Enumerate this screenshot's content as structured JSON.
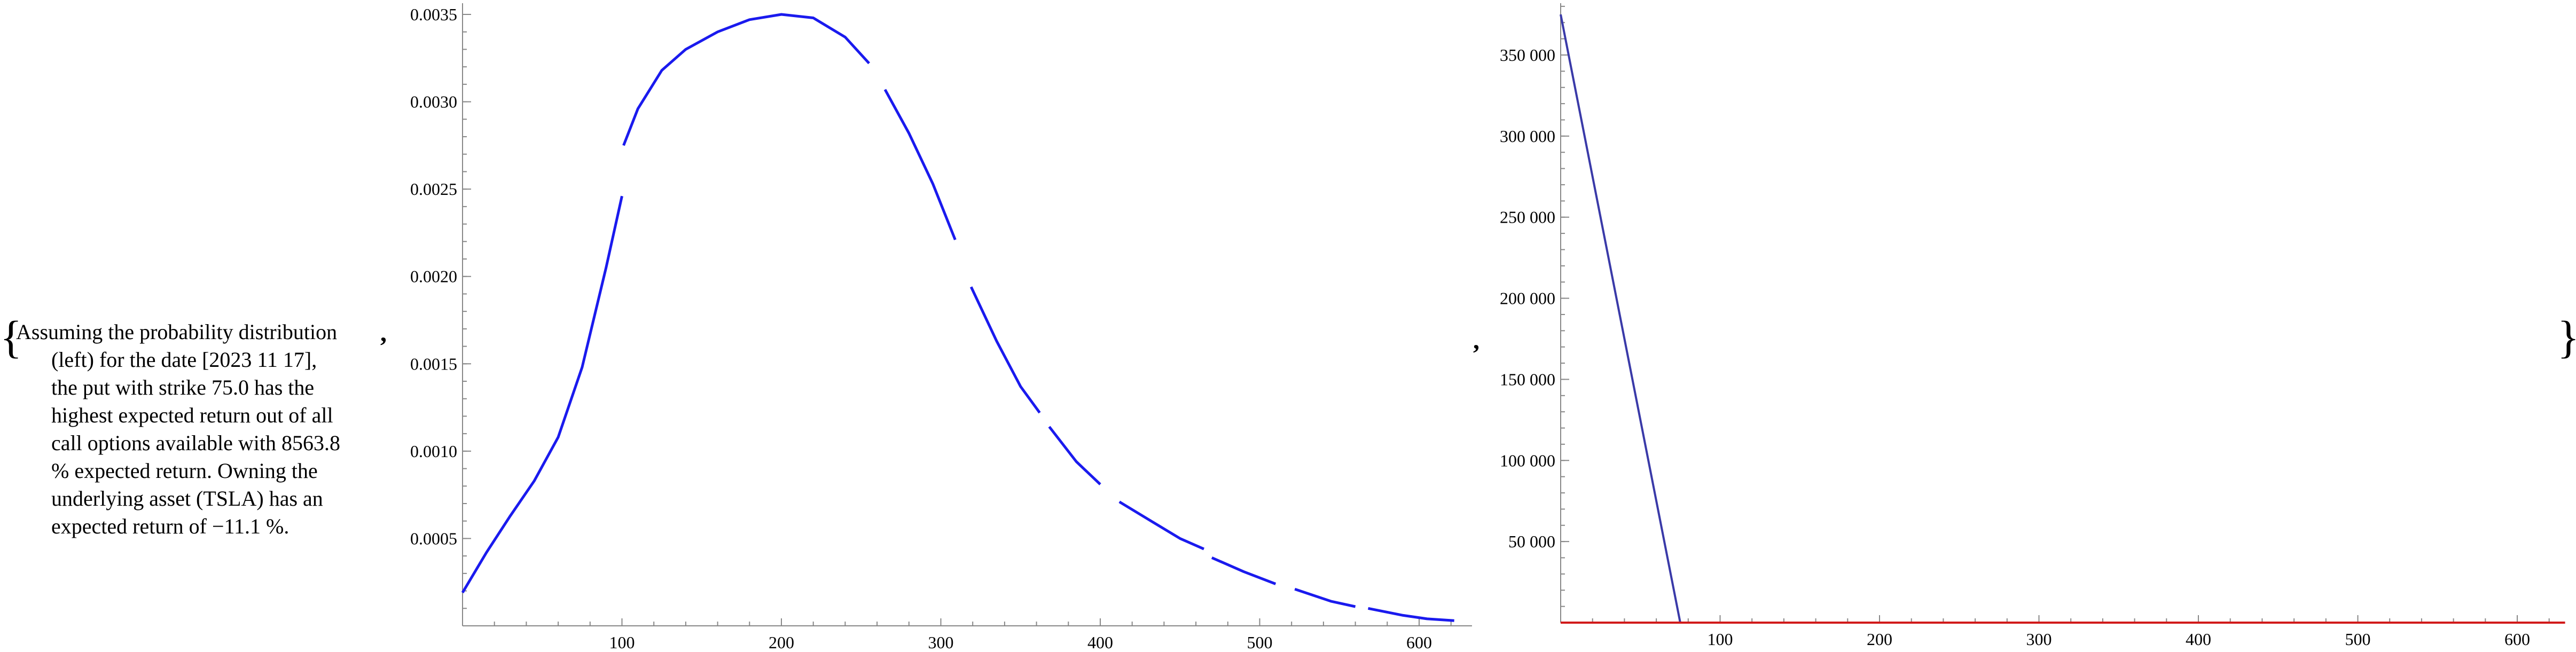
{
  "punctuation": {
    "open_brace": "{",
    "close_brace": "}",
    "separator": ","
  },
  "description": {
    "first_line": "Assuming the probability distribution",
    "lines": [
      "(left) for the date [2023 11 17],",
      "the put with strike 75.0 has the",
      "highest expected return out of all",
      "call options available with 8563.8",
      "% expected return. Owning the",
      "underlying asset (TSLA) has an",
      "expected return of −11.1 %."
    ]
  },
  "chart_data": [
    {
      "type": "line",
      "title": "",
      "xlabel": "",
      "ylabel": "",
      "xlim": [
        0,
        630
      ],
      "ylim": [
        0,
        0.00355
      ],
      "x_ticks": [
        100,
        200,
        300,
        400,
        500,
        600
      ],
      "x_tick_labels": [
        "100",
        "200",
        "300",
        "400",
        "500",
        "600"
      ],
      "y_ticks": [
        0.0005,
        0.001,
        0.0015,
        0.002,
        0.0025,
        0.003,
        0.0035
      ],
      "y_tick_labels": [
        "0.0005",
        "0.0010",
        "0.0015",
        "0.0020",
        "0.0025",
        "0.0030",
        "0.0035"
      ],
      "grid": false,
      "colors": {
        "series": "#1a1aee",
        "axis": "#888888"
      },
      "series": [
        {
          "segments": [
            [
              [
                0,
                0.00019
              ],
              [
                15,
                0.00042
              ],
              [
                30,
                0.00063
              ],
              [
                45,
                0.00083
              ],
              [
                60,
                0.00108
              ],
              [
                75,
                0.00148
              ],
              [
                90,
                0.00205
              ],
              [
                100,
                0.00246
              ]
            ],
            [
              [
                101,
                0.00275
              ],
              [
                110,
                0.00296
              ],
              [
                125,
                0.00318
              ],
              [
                140,
                0.0033
              ],
              [
                160,
                0.0034
              ],
              [
                180,
                0.00347
              ],
              [
                200,
                0.0035
              ],
              [
                220,
                0.00348
              ],
              [
                240,
                0.00337
              ],
              [
                255,
                0.00322
              ]
            ],
            [
              [
                265,
                0.00307
              ],
              [
                280,
                0.00282
              ],
              [
                295,
                0.00253
              ],
              [
                309,
                0.00221
              ]
            ],
            [
              [
                319,
                0.00194
              ],
              [
                335,
                0.00163
              ],
              [
                350,
                0.00137
              ],
              [
                362,
                0.00122
              ]
            ],
            [
              [
                368,
                0.00114
              ],
              [
                385,
                0.00094
              ],
              [
                400,
                0.00081
              ]
            ],
            [
              [
                412,
                0.00071
              ],
              [
                430,
                0.00061
              ],
              [
                450,
                0.0005
              ],
              [
                465,
                0.00044
              ]
            ],
            [
              [
                470,
                0.00039
              ],
              [
                490,
                0.00031
              ],
              [
                510,
                0.00024
              ]
            ],
            [
              [
                522,
                0.00021
              ],
              [
                545,
                0.00014
              ],
              [
                560,
                0.00011
              ]
            ],
            [
              [
                568,
                0.0001
              ],
              [
                590,
                6e-05
              ],
              [
                605,
                4e-05
              ],
              [
                622,
                3e-05
              ]
            ]
          ]
        }
      ]
    },
    {
      "type": "line",
      "title": "",
      "xlabel": "",
      "ylabel": "",
      "xlim": [
        0,
        630
      ],
      "ylim": [
        0,
        380000
      ],
      "x_ticks": [
        100,
        200,
        300,
        400,
        500,
        600
      ],
      "x_tick_labels": [
        "100",
        "200",
        "300",
        "400",
        "500",
        "600"
      ],
      "y_ticks": [
        50000,
        100000,
        150000,
        200000,
        250000,
        300000,
        350000
      ],
      "y_tick_labels": [
        "50 000",
        "100 000",
        "150 000",
        "200 000",
        "250 000",
        "300 000",
        "350 000"
      ],
      "grid": false,
      "colors": {
        "blue_series": "#3a3aa8",
        "red_series": "#d11a1a",
        "axis": "#888888"
      },
      "series": [
        {
          "color_key": "blue_series",
          "points": [
            [
              0,
              375000
            ],
            [
              75,
              0
            ]
          ]
        },
        {
          "color_key": "red_series",
          "points": [
            [
              0,
              0
            ],
            [
              630,
              0
            ]
          ]
        }
      ]
    }
  ]
}
